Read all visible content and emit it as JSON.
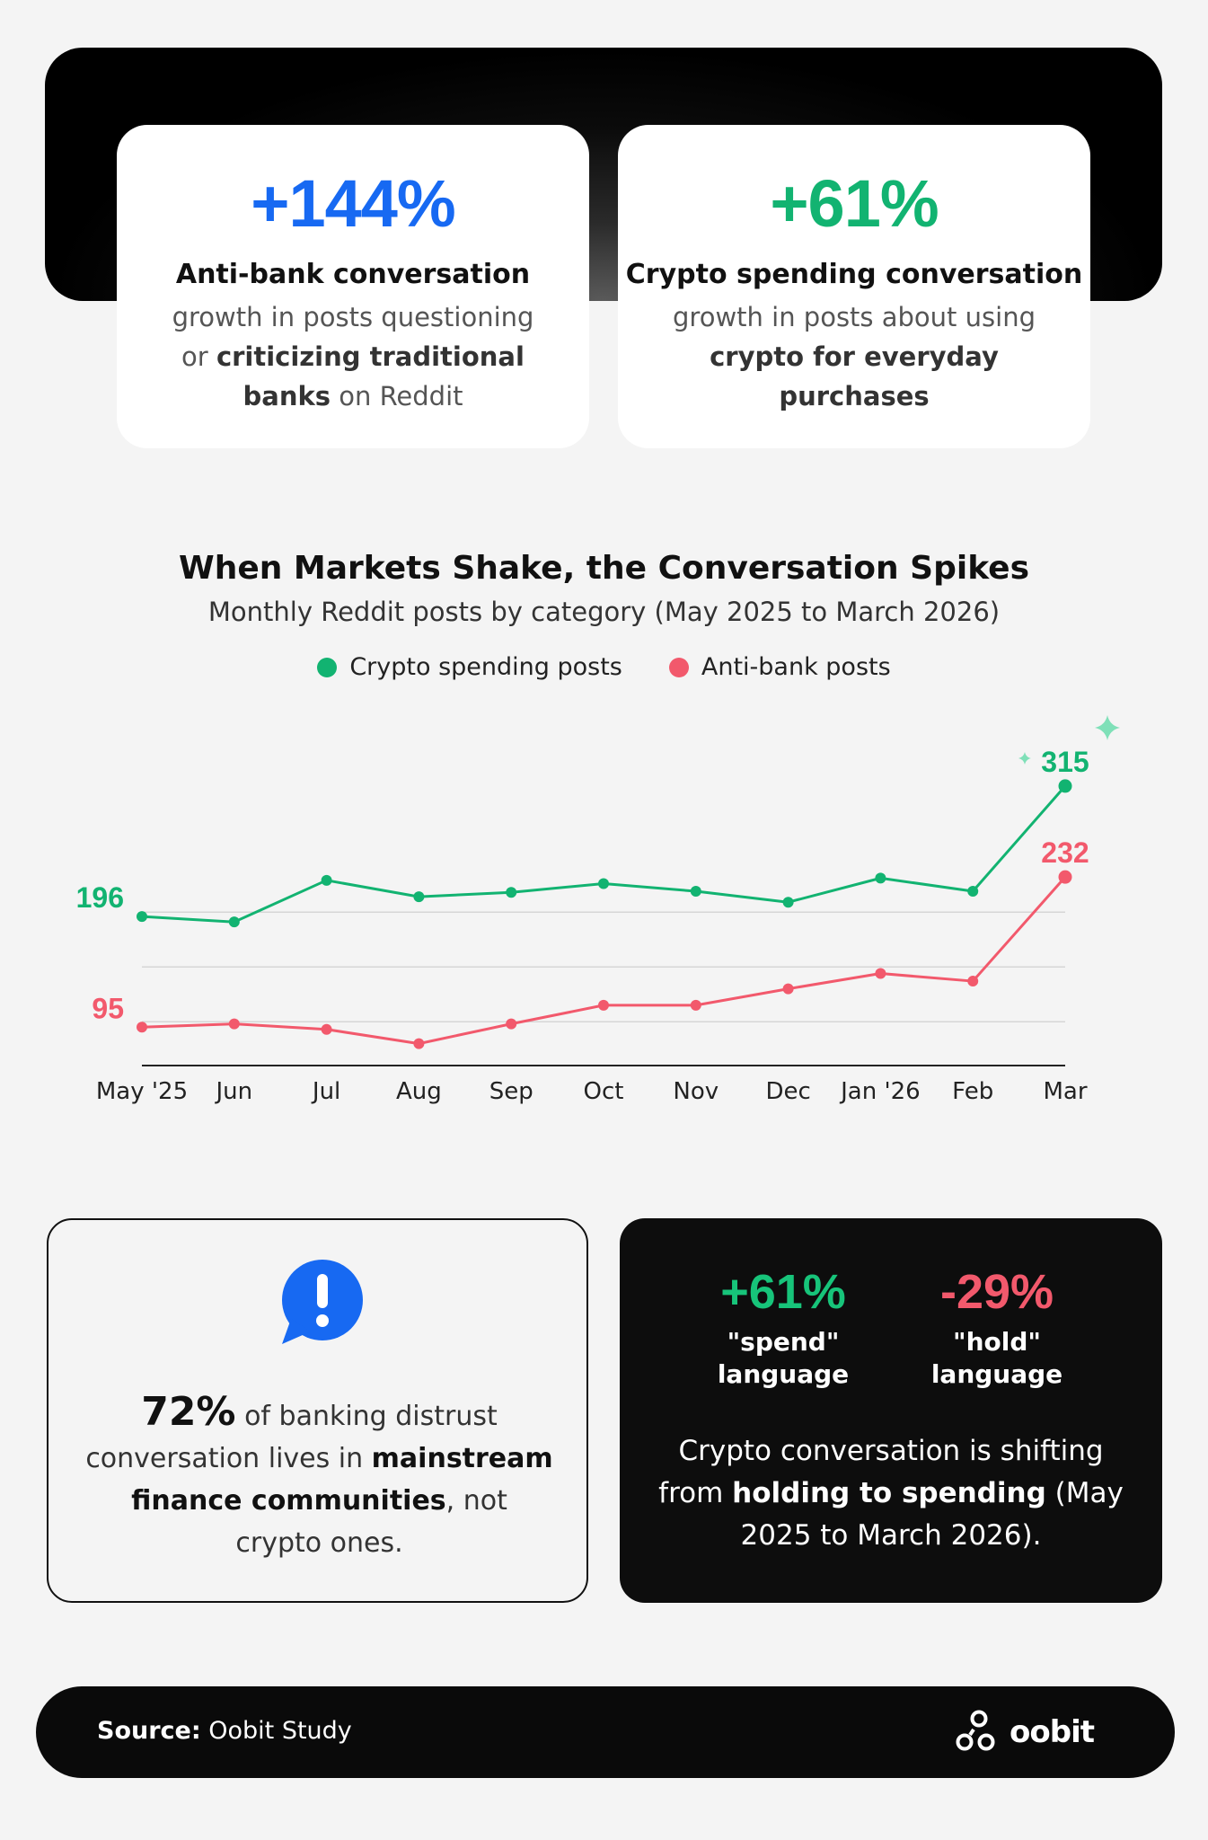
{
  "stats": [
    {
      "value": "+144%",
      "title": "Anti-bank conversation",
      "desc_plain_1": "growth in posts questioning or ",
      "desc_bold_1": "criticizing traditional banks",
      "desc_plain_2": " on Reddit"
    },
    {
      "value": "+61%",
      "title": "Crypto spending conversation",
      "desc_plain_1": "growth in posts about using ",
      "desc_bold_1": "crypto for everyday purchases",
      "desc_plain_2": ""
    }
  ],
  "chart_data": {
    "type": "line",
    "title": "When Markets Shake, the Conversation Spikes",
    "subtitle": "Monthly Reddit posts by category (May 2025 to March 2026)",
    "categories": [
      "May '25",
      "Jun",
      "Jul",
      "Aug",
      "Sep",
      "Oct",
      "Nov",
      "Dec",
      "Jan '26",
      "Feb",
      "Mar"
    ],
    "series": [
      {
        "name": "Crypto spending posts",
        "color": "#12b371",
        "values": [
          196,
          191,
          229,
          214,
          218,
          226,
          219,
          209,
          231,
          219,
          315
        ],
        "labeled": {
          "0": "196",
          "10": "315"
        }
      },
      {
        "name": "Anti-bank posts",
        "color": "#f2596c",
        "values": [
          95,
          98,
          93,
          80,
          98,
          115,
          115,
          130,
          144,
          137,
          232
        ],
        "labeled": {
          "0": "95",
          "10": "232"
        }
      }
    ],
    "ylim": [
      60,
      360
    ],
    "grid": "horizontal",
    "legend": "top-center"
  },
  "insight": {
    "icon": "exclamation-bubble-icon",
    "big_value": "72%",
    "text_1": " of banking distrust conversation lives in ",
    "bold_1": "mainstream finance communities",
    "text_2": ", not crypto ones."
  },
  "shift": {
    "spend_value": "+61%",
    "spend_label": "\"spend\" language",
    "hold_value": "-29%",
    "hold_label": "\"hold\" language",
    "text_1": "Crypto conversation is shifting from ",
    "bold_1": "holding to spending",
    "text_2": " (May 2025 to March 2026)."
  },
  "footer": {
    "source_label": "Source:",
    "source_value": " Oobit Study",
    "brand": "oobit"
  }
}
